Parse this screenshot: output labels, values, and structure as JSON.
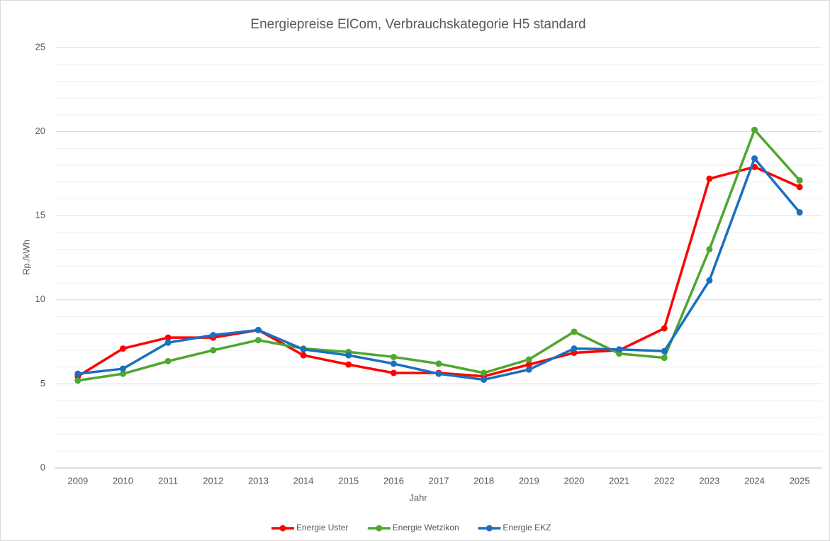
{
  "chart_data": {
    "type": "line",
    "title": "Energiepreise ElCom, Verbrauchskategorie H5 standard",
    "x_label": "Jahr",
    "y_label": "Rp./kWh",
    "categories": [
      "2009",
      "2010",
      "2011",
      "2012",
      "2013",
      "2014",
      "2015",
      "2016",
      "2017",
      "2018",
      "2019",
      "2020",
      "2021",
      "2022",
      "2023",
      "2024",
      "2025"
    ],
    "series": [
      {
        "name": "Energie Uster",
        "color": "#ff0000",
        "values": [
          5.45,
          7.1,
          7.75,
          7.75,
          8.2,
          6.7,
          6.15,
          5.65,
          5.65,
          5.45,
          6.15,
          6.85,
          7.0,
          8.3,
          17.2,
          17.9,
          16.7
        ]
      },
      {
        "name": "Energie Wetzikon",
        "color": "#4ea72e",
        "values": [
          5.2,
          5.6,
          6.35,
          7.0,
          7.6,
          7.1,
          6.9,
          6.6,
          6.2,
          5.65,
          6.45,
          8.1,
          6.8,
          6.55,
          13.0,
          20.1,
          17.1
        ]
      },
      {
        "name": "Energie EKZ",
        "color": "#1a6fc0",
        "values": [
          5.6,
          5.9,
          7.45,
          7.9,
          8.2,
          7.05,
          6.7,
          6.2,
          5.6,
          5.25,
          5.85,
          7.1,
          7.05,
          6.95,
          11.15,
          18.4,
          15.2
        ]
      }
    ],
    "ylim": [
      0,
      25
    ],
    "yticks": [
      0,
      5,
      10,
      15,
      20,
      25
    ],
    "minor_yticks": [
      1,
      2,
      3,
      4,
      6,
      7,
      8,
      9,
      11,
      12,
      13,
      14,
      16,
      17,
      18,
      19,
      21,
      22,
      23,
      24
    ],
    "grid": true,
    "legend": "bottom"
  }
}
